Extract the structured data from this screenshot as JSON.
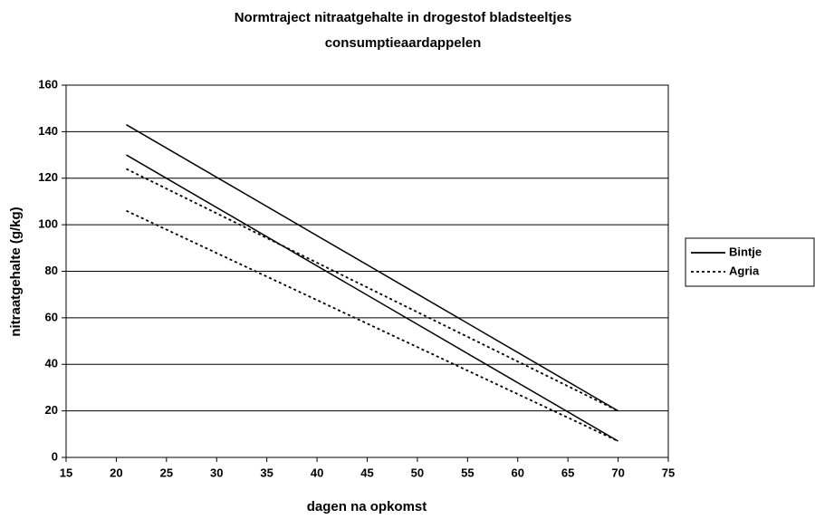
{
  "chart_data": {
    "type": "line",
    "title": [
      "Normtraject nitraatgehalte in drogestof bladsteeltjes",
      "consumptieaardappelen"
    ],
    "x_label": "dagen na opkomst",
    "y_label": "nitraatgehalte (g/kg)",
    "x": [
      21,
      70
    ],
    "series": [
      {
        "name": "Bintje",
        "color": "#000000",
        "dash": "solid",
        "lines": [
          [
            143,
            20
          ],
          [
            130,
            7
          ]
        ]
      },
      {
        "name": "Agria",
        "color": "#000000",
        "dash": "dotted",
        "lines": [
          [
            124,
            20
          ],
          [
            106,
            7
          ]
        ]
      }
    ],
    "xlim": [
      15,
      75
    ],
    "xticks": [
      15,
      20,
      25,
      30,
      35,
      40,
      45,
      50,
      55,
      60,
      65,
      70,
      75
    ],
    "ylim": [
      0,
      160
    ],
    "yticks": [
      0,
      20,
      40,
      60,
      80,
      100,
      120,
      140,
      160
    ],
    "grid": true,
    "legend": "right"
  }
}
